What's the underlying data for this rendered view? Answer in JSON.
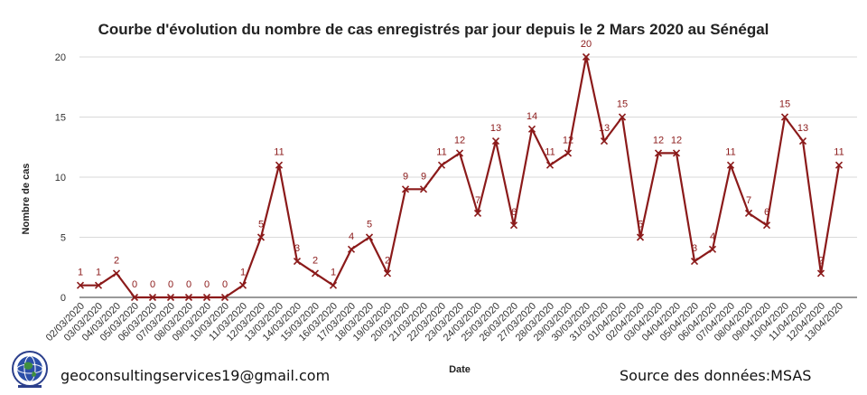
{
  "chart_data": {
    "type": "line",
    "title": "Courbe d'évolution du nombre de cas enregistrés par jour depuis le 2 Mars 2020 au Sénégal",
    "xlabel": "Date",
    "ylabel": "Nombre de cas",
    "ylim": [
      0,
      20
    ],
    "yticks": [
      0,
      5,
      10,
      15,
      20
    ],
    "grid": true,
    "colors": {
      "line": "#8b1a1a",
      "grid": "#d9d9d9",
      "label": "#8b1a1a"
    },
    "categories": [
      "02/03/2020",
      "03/03/2020",
      "04/03/2020",
      "05/03/2020",
      "06/03/2020",
      "07/03/2020",
      "08/03/2020",
      "09/03/2020",
      "10/03/2020",
      "11/03/2020",
      "12/03/2020",
      "13/03/2020",
      "14/03/2020",
      "15/03/2020",
      "16/03/2020",
      "17/03/2020",
      "18/03/2020",
      "19/03/2020",
      "20/03/2020",
      "21/03/2020",
      "22/03/2020",
      "23/03/2020",
      "24/03/2020",
      "25/03/2020",
      "26/03/2020",
      "27/03/2020",
      "28/03/2020",
      "29/03/2020",
      "30/03/2020",
      "31/03/2020",
      "01/04/2020",
      "02/04/2020",
      "03/04/2020",
      "04/04/2020",
      "05/04/2020",
      "06/04/2020",
      "07/04/2020",
      "08/04/2020",
      "09/04/2020",
      "10/04/2020",
      "11/04/2020",
      "12/04/2020",
      "13/04/2020"
    ],
    "series": [
      {
        "values": [
          1,
          1,
          2,
          0,
          0,
          0,
          0,
          0,
          0,
          1,
          5,
          11,
          3,
          2,
          1,
          4,
          5,
          2,
          9,
          9,
          11,
          12,
          7,
          13,
          6,
          14,
          11,
          12,
          20,
          13,
          15,
          5,
          12,
          12,
          3,
          4,
          11,
          7,
          6,
          15,
          13,
          2,
          11
        ]
      }
    ]
  },
  "footer": {
    "email": "geoconsultingservices19@gmail.com",
    "source": "Source des données:MSAS",
    "logo_icon": "globe-logo-icon"
  }
}
